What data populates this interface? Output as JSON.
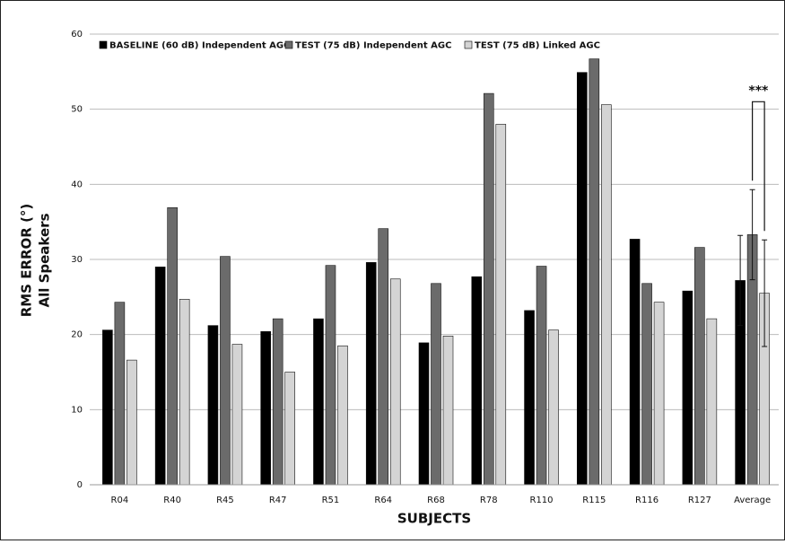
{
  "chart_data": {
    "type": "bar",
    "y_label": "RMS ERROR (°)",
    "y_label_2": "All Speakers",
    "x_label": "SUBJECTS",
    "categories": [
      "R04",
      "R40",
      "R45",
      "R47",
      "R51",
      "R64",
      "R68",
      "R78",
      "R110",
      "R115",
      "R116",
      "R127",
      "Average"
    ],
    "series": [
      {
        "name": "BASELINE (60 dB) Independent AGC",
        "color": "#000000",
        "values": [
          20.6,
          29.0,
          21.2,
          20.4,
          22.1,
          29.6,
          18.9,
          27.7,
          23.2,
          54.9,
          32.7,
          25.8,
          27.2
        ],
        "errors": [
          null,
          null,
          null,
          null,
          null,
          null,
          null,
          null,
          null,
          null,
          null,
          null,
          6.0
        ]
      },
      {
        "name": "TEST (75 dB) Independent AGC",
        "color": "#6b6b6b",
        "values": [
          24.3,
          36.9,
          30.4,
          22.1,
          29.2,
          34.1,
          26.8,
          52.1,
          29.1,
          56.7,
          26.8,
          31.6,
          33.3
        ],
        "errors": [
          null,
          null,
          null,
          null,
          null,
          null,
          null,
          null,
          null,
          null,
          null,
          null,
          6.0
        ]
      },
      {
        "name": "TEST (75 dB) Linked AGC",
        "color": "#d4d4d4",
        "values": [
          16.6,
          24.7,
          18.7,
          15.0,
          18.5,
          27.4,
          19.8,
          48.0,
          20.6,
          50.6,
          24.3,
          22.1,
          25.5
        ],
        "errors": [
          null,
          null,
          null,
          null,
          null,
          null,
          null,
          null,
          null,
          null,
          null,
          null,
          7.1
        ]
      }
    ],
    "annotation": "***",
    "ylim": [
      0,
      60
    ],
    "yticks": [
      0,
      10,
      20,
      30,
      40,
      50,
      60
    ],
    "grid": true,
    "legend": "top-left"
  }
}
